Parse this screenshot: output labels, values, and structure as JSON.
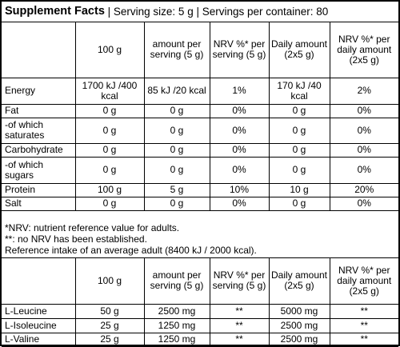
{
  "header": {
    "title": "Supplement Facts",
    "subtitle": " | Serving size: 5 g | Servings per container: 80"
  },
  "nutrition_table": {
    "columns": [
      "",
      "100 g",
      "amount per serving (5 g)",
      "NRV %* per serving (5 g)",
      "Daily amount (2x5 g)",
      "NRV %* per daily amount (2x5 g)"
    ],
    "rows": [
      [
        "Energy",
        "1700 kJ /400 kcal",
        "85 kJ /20 kcal",
        "1%",
        "170 kJ /40 kcal",
        "2%"
      ],
      [
        "Fat",
        "0 g",
        "0 g",
        "0%",
        "0 g",
        "0%"
      ],
      [
        "-of which saturates",
        "0 g",
        "0 g",
        "0%",
        "0 g",
        "0%"
      ],
      [
        "Carbohydrate",
        "0 g",
        "0 g",
        "0%",
        "0 g",
        "0%"
      ],
      [
        "-of which sugars",
        "0 g",
        "0 g",
        "0%",
        "0 g",
        "0%"
      ],
      [
        "Protein",
        "100 g",
        "5 g",
        "10%",
        "10 g",
        "20%"
      ],
      [
        "Salt",
        "0 g",
        "0 g",
        "0%",
        "0 g",
        "0%"
      ]
    ]
  },
  "notes": [
    "*NRV: nutrient reference value for adults.",
    "**: no NRV has been established.",
    "Reference intake of an average adult (8400 kJ / 2000 kcal)."
  ],
  "amino_table": {
    "columns": [
      "",
      "100 g",
      "amount per serving (5 g)",
      "NRV %* per serving (5 g)",
      "Daily amount (2x5 g)",
      "NRV %* per daily amount (2x5 g)"
    ],
    "rows": [
      [
        "L-Leucine",
        "50 g",
        "2500 mg",
        "**",
        "5000 mg",
        "**"
      ],
      [
        "L-Isoleucine",
        "25 g",
        "1250 mg",
        "**",
        "2500 mg",
        "**"
      ],
      [
        "L-Valine",
        "25 g",
        "1250 mg",
        "**",
        "2500 mg",
        "**"
      ]
    ]
  }
}
